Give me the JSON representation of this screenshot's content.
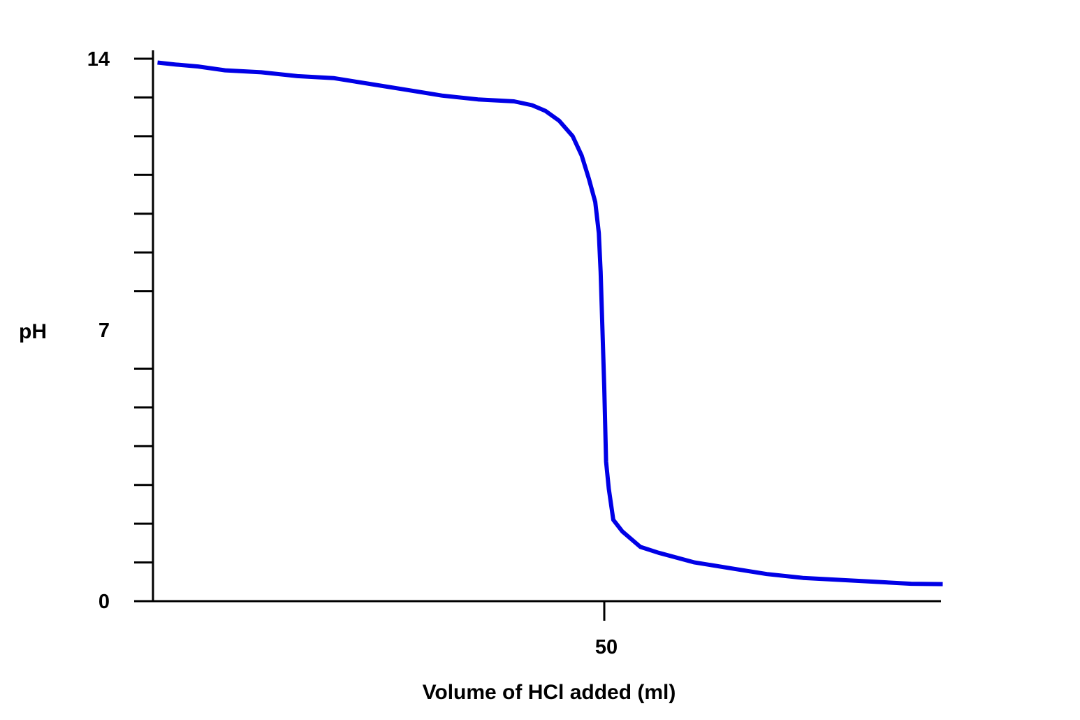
{
  "chart_data": {
    "type": "line",
    "title": "",
    "xlabel": "Volume of HCl added (ml)",
    "ylabel": "pH",
    "xlim": [
      0,
      96
    ],
    "ylim": [
      0,
      14
    ],
    "x_tick_labels": [
      {
        "value": 50,
        "label": "50"
      }
    ],
    "y_tick_labels": [
      {
        "value": 0,
        "label": "0"
      },
      {
        "value": 7,
        "label": "7"
      },
      {
        "value": 14,
        "label": "14"
      }
    ],
    "y_minor_ticks": [
      1,
      2,
      3,
      4,
      5,
      6,
      8,
      9,
      10,
      11,
      12,
      13,
      14
    ],
    "grid": false,
    "legend": "none",
    "series": [
      {
        "color": "#0000e6",
        "x": [
          0.5,
          2.5,
          5,
          8,
          12,
          16,
          20,
          24,
          28,
          32,
          36,
          40,
          42,
          43.5,
          45,
          46.5,
          47.5,
          48.3,
          49,
          49.4,
          49.6,
          49.8,
          50,
          50.2,
          50.5,
          51,
          52,
          54,
          56,
          60,
          64,
          68,
          72,
          76,
          80,
          84,
          87.5
        ],
        "y": [
          13.9,
          13.85,
          13.8,
          13.7,
          13.65,
          13.55,
          13.5,
          13.35,
          13.2,
          13.05,
          12.95,
          12.9,
          12.8,
          12.65,
          12.4,
          12.0,
          11.5,
          10.9,
          10.3,
          9.5,
          8.5,
          7.0,
          5.5,
          3.6,
          2.9,
          2.1,
          1.8,
          1.4,
          1.25,
          1.0,
          0.85,
          0.7,
          0.6,
          0.55,
          0.5,
          0.45,
          0.44
        ]
      }
    ]
  }
}
